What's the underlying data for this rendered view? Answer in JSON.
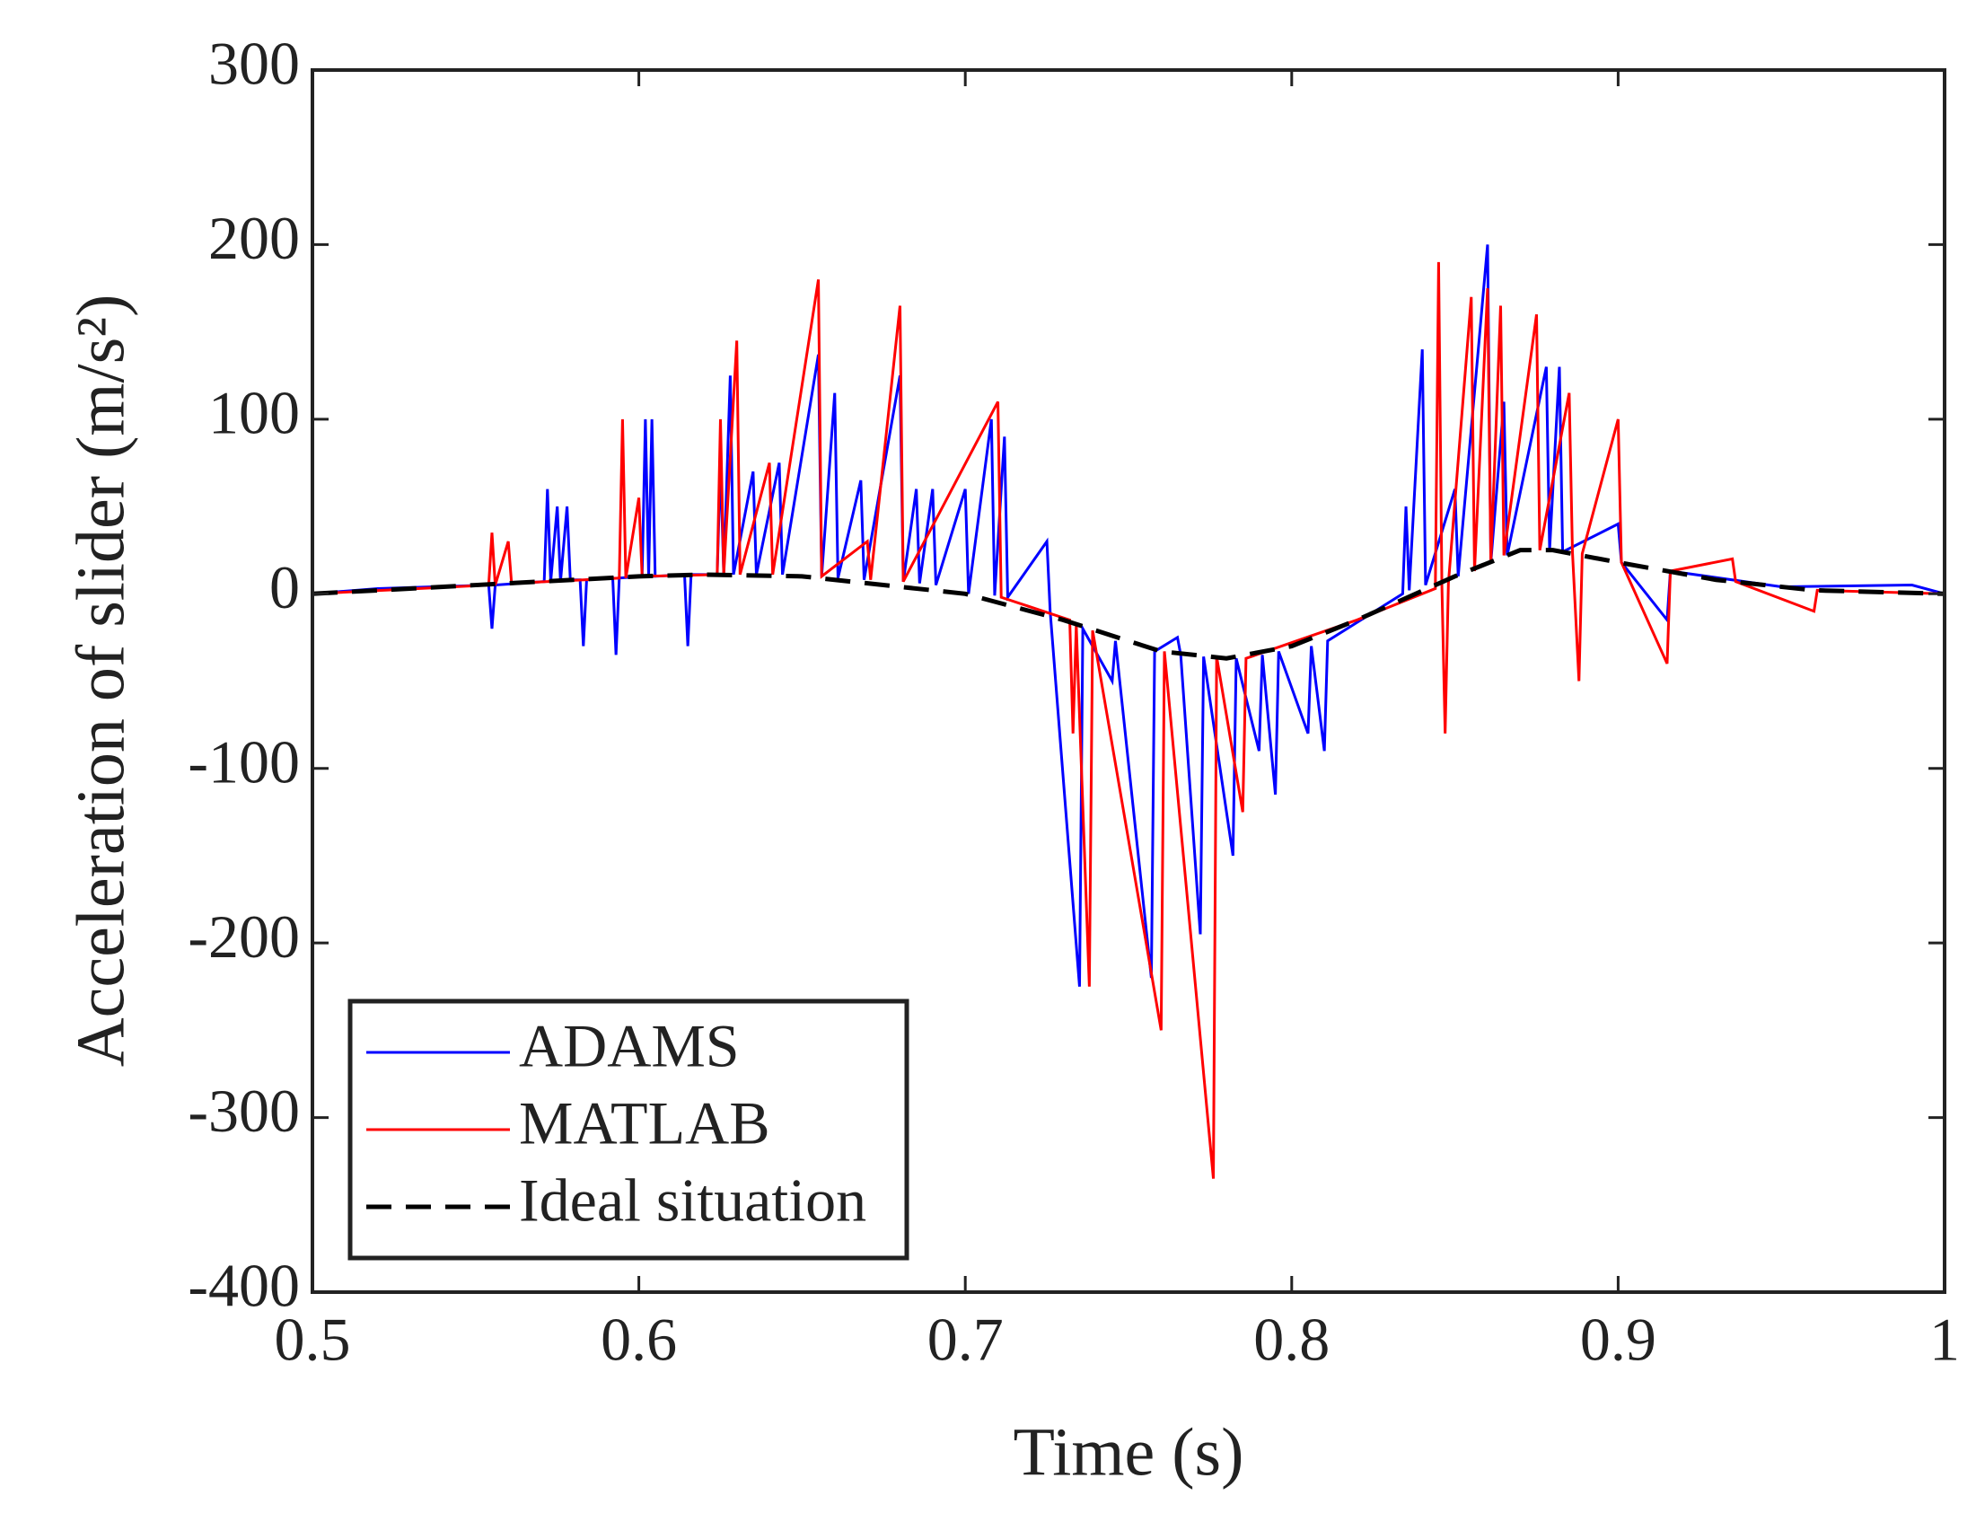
{
  "chart_data": {
    "type": "line",
    "xlabel": "Time (s)",
    "ylabel": "Acceleration of slider (m/s²)",
    "xlim": [
      0.5,
      1
    ],
    "xticks": [
      0.5,
      0.6,
      0.7,
      0.8,
      0.9,
      1
    ],
    "ylim": [
      -400,
      300
    ],
    "yticks": [
      -400,
      -300,
      -200,
      -100,
      0,
      100,
      200,
      300
    ],
    "legend": "lower left",
    "series": [
      {
        "name": "ADAMS",
        "color": "#0000ff",
        "dash": false,
        "x": [
          0.5,
          0.52,
          0.554,
          0.555,
          0.556,
          0.571,
          0.572,
          0.573,
          0.575,
          0.576,
          0.578,
          0.579,
          0.582,
          0.583,
          0.584,
          0.592,
          0.593,
          0.594,
          0.601,
          0.602,
          0.603,
          0.604,
          0.605,
          0.614,
          0.615,
          0.616,
          0.624,
          0.625,
          0.626,
          0.628,
          0.629,
          0.635,
          0.636,
          0.643,
          0.644,
          0.655,
          0.656,
          0.66,
          0.661,
          0.668,
          0.669,
          0.68,
          0.681,
          0.685,
          0.686,
          0.69,
          0.691,
          0.7,
          0.701,
          0.708,
          0.709,
          0.712,
          0.713,
          0.725,
          0.726,
          0.735,
          0.736,
          0.745,
          0.746,
          0.757,
          0.758,
          0.765,
          0.766,
          0.772,
          0.773,
          0.782,
          0.783,
          0.79,
          0.791,
          0.795,
          0.796,
          0.805,
          0.806,
          0.81,
          0.811,
          0.834,
          0.835,
          0.836,
          0.84,
          0.841,
          0.85,
          0.851,
          0.86,
          0.861,
          0.865,
          0.866,
          0.878,
          0.879,
          0.882,
          0.883,
          0.9,
          0.901,
          0.915,
          0.916,
          0.95,
          0.99,
          1.0
        ],
        "values": [
          0,
          3,
          5,
          -20,
          5,
          7,
          60,
          7,
          50,
          7,
          50,
          8,
          8,
          -30,
          8,
          9,
          -35,
          9,
          10,
          100,
          10,
          100,
          10,
          11,
          -30,
          11,
          11,
          75,
          11,
          125,
          11,
          70,
          11,
          75,
          11,
          137,
          10,
          115,
          9,
          65,
          8,
          125,
          7,
          60,
          6,
          60,
          5,
          60,
          0,
          100,
          -1,
          90,
          -2,
          30,
          -10,
          -225,
          -20,
          -50,
          -27,
          -220,
          -33,
          -25,
          -35,
          -195,
          -36,
          -150,
          -37,
          -90,
          -35,
          -115,
          -33,
          -80,
          -30,
          -90,
          -27,
          0,
          50,
          2,
          140,
          5,
          60,
          10,
          200,
          18,
          110,
          22,
          130,
          25,
          130,
          24,
          40,
          18,
          -15,
          13,
          4,
          5,
          0
        ]
      },
      {
        "name": "MATLAB",
        "color": "#ff0000",
        "dash": false,
        "x": [
          0.5,
          0.554,
          0.555,
          0.556,
          0.56,
          0.561,
          0.594,
          0.595,
          0.596,
          0.6,
          0.601,
          0.624,
          0.625,
          0.626,
          0.63,
          0.631,
          0.64,
          0.641,
          0.655,
          0.656,
          0.67,
          0.671,
          0.68,
          0.681,
          0.71,
          0.711,
          0.732,
          0.733,
          0.734,
          0.738,
          0.739,
          0.76,
          0.761,
          0.776,
          0.777,
          0.785,
          0.786,
          0.82,
          0.844,
          0.845,
          0.846,
          0.847,
          0.848,
          0.855,
          0.856,
          0.86,
          0.861,
          0.864,
          0.865,
          0.875,
          0.876,
          0.885,
          0.886,
          0.888,
          0.889,
          0.9,
          0.901,
          0.915,
          0.916,
          0.935,
          0.936,
          0.96,
          0.961,
          1.0
        ],
        "values": [
          0,
          5,
          35,
          5,
          30,
          6,
          9,
          100,
          9,
          55,
          10,
          11,
          100,
          11,
          145,
          11,
          75,
          11,
          180,
          10,
          30,
          8,
          165,
          7,
          110,
          -2,
          -15,
          -80,
          -18,
          -225,
          -21,
          -250,
          -33,
          -335,
          -36,
          -125,
          -37,
          -15,
          3,
          190,
          5,
          -80,
          6,
          170,
          13,
          175,
          18,
          165,
          22,
          160,
          25,
          115,
          24,
          -50,
          23,
          100,
          18,
          -40,
          13,
          20,
          7,
          -10,
          2,
          0
        ]
      },
      {
        "name": "Ideal situation",
        "color": "#000000",
        "dash": true,
        "x": [
          0.5,
          0.55,
          0.6,
          0.62,
          0.65,
          0.7,
          0.73,
          0.76,
          0.78,
          0.8,
          0.82,
          0.85,
          0.87,
          0.88,
          0.9,
          0.93,
          0.96,
          1.0
        ],
        "values": [
          0,
          5,
          10,
          11,
          10,
          0,
          -15,
          -33,
          -37,
          -30,
          -15,
          10,
          25,
          25,
          18,
          8,
          2,
          0
        ]
      }
    ]
  }
}
